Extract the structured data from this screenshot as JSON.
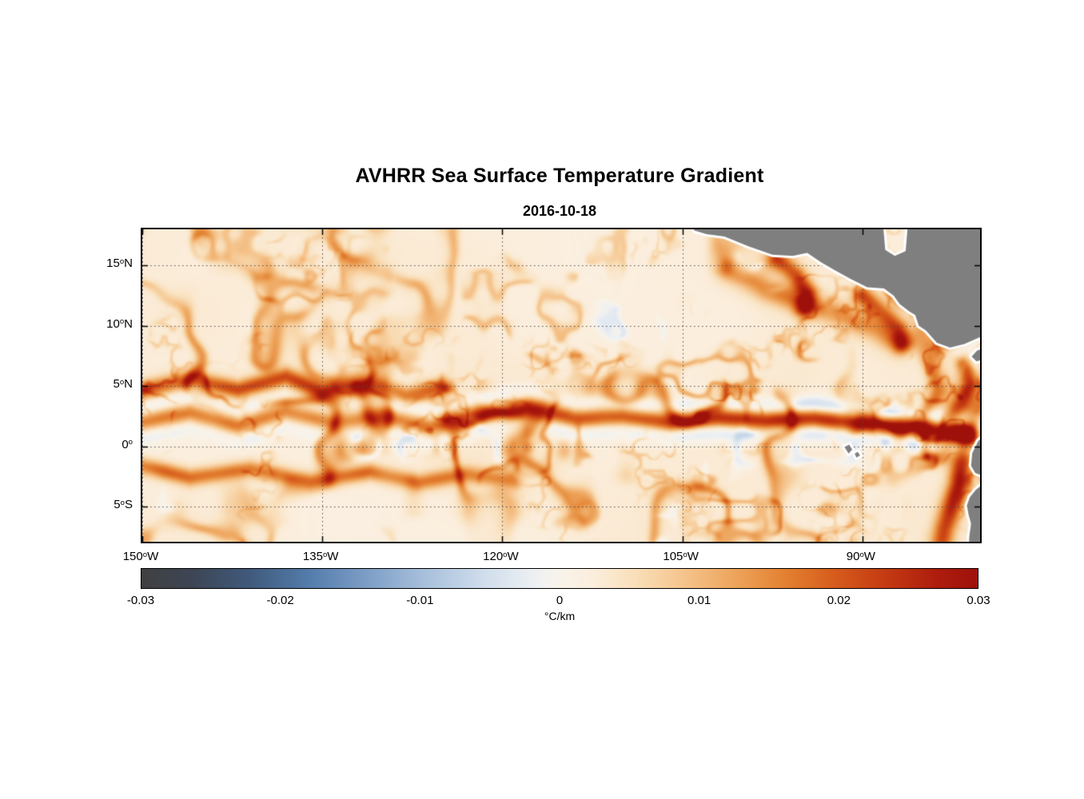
{
  "chart_data": {
    "type": "heatmap",
    "title": "AVHRR Sea Surface Temperature Gradient",
    "subtitle": "2016-10-18",
    "units": "°C/km",
    "lon_range": [
      -150,
      -80.2
    ],
    "lat_range": [
      -7.9,
      18.0
    ],
    "x_ticks": [
      {
        "lon": -150,
        "text": "150",
        "sup": "o",
        "suffix": "W"
      },
      {
        "lon": -135,
        "text": "135",
        "sup": "o",
        "suffix": "W"
      },
      {
        "lon": -120,
        "text": "120",
        "sup": "o",
        "suffix": "W"
      },
      {
        "lon": -105,
        "text": "105",
        "sup": "o",
        "suffix": "W"
      },
      {
        "lon": -90,
        "text": "90",
        "sup": "o",
        "suffix": "W"
      }
    ],
    "y_ticks": [
      {
        "lat": 15,
        "text": "15",
        "sup": "o",
        "suffix": "N"
      },
      {
        "lat": 10,
        "text": "10",
        "sup": "o",
        "suffix": "N"
      },
      {
        "lat": 5,
        "text": "5",
        "sup": "o",
        "suffix": "N"
      },
      {
        "lat": 0,
        "text": "0",
        "sup": "o",
        "suffix": ""
      },
      {
        "lat": -5,
        "text": "5",
        "sup": "o",
        "suffix": "S"
      }
    ],
    "grid": {
      "lons": [
        -150,
        -135,
        -120,
        -105,
        -90
      ],
      "lats": [
        -5,
        0,
        5,
        10,
        15
      ],
      "style": "dotted",
      "color": "#4a4a4a"
    },
    "colorbar": {
      "min": -0.03,
      "max": 0.03,
      "tick_labels": [
        "-0.03",
        "-0.02",
        "-0.01",
        "0",
        "0.01",
        "0.02",
        "0.03"
      ],
      "label": "°C/km",
      "stops": [
        [
          0.0,
          "#404041"
        ],
        [
          0.06,
          "#3d4554"
        ],
        [
          0.13,
          "#405a7c"
        ],
        [
          0.2,
          "#547cab"
        ],
        [
          0.27,
          "#7d9ec6"
        ],
        [
          0.34,
          "#a8c0dc"
        ],
        [
          0.41,
          "#d0ddec"
        ],
        [
          0.47,
          "#edf0f3"
        ],
        [
          0.5,
          "#f8f3ea"
        ],
        [
          0.54,
          "#fbeedd"
        ],
        [
          0.59,
          "#f9dfba"
        ],
        [
          0.65,
          "#f5c38b"
        ],
        [
          0.71,
          "#eda45b"
        ],
        [
          0.77,
          "#e38031"
        ],
        [
          0.83,
          "#d65b1c"
        ],
        [
          0.89,
          "#c43a12"
        ],
        [
          0.95,
          "#ae1d0e"
        ],
        [
          1.0,
          "#9e110b"
        ]
      ]
    },
    "map": {
      "land_color": "#7f7f7f",
      "coast_color": "#ffffff",
      "land_polygons": {
        "central_america": [
          [
            -104.5,
            18.6
          ],
          [
            -104.0,
            17.9
          ],
          [
            -103.0,
            17.6
          ],
          [
            -101.5,
            17.4
          ],
          [
            -99.5,
            16.6
          ],
          [
            -97.5,
            15.9
          ],
          [
            -95.8,
            15.8
          ],
          [
            -94.6,
            16.05
          ],
          [
            -93.5,
            15.3
          ],
          [
            -92.3,
            14.6
          ],
          [
            -91.0,
            13.9
          ],
          [
            -89.6,
            13.2
          ],
          [
            -88.2,
            13.1
          ],
          [
            -87.4,
            12.5
          ],
          [
            -86.9,
            11.8
          ],
          [
            -86.1,
            11.2
          ],
          [
            -85.6,
            10.9
          ],
          [
            -85.3,
            10.0
          ],
          [
            -84.7,
            9.6
          ],
          [
            -83.8,
            8.6
          ],
          [
            -82.7,
            8.2
          ],
          [
            -81.5,
            8.5
          ],
          [
            -80.6,
            8.9
          ],
          [
            -79.6,
            9.3
          ],
          [
            -79.6,
            18.6
          ],
          [
            -86.2,
            18.6
          ],
          [
            -86.4,
            16.2
          ],
          [
            -87.3,
            15.8
          ],
          [
            -88.1,
            16.3
          ],
          [
            -88.3,
            18.6
          ]
        ],
        "azuero_peninsula": [
          [
            -79.8,
            8.15
          ],
          [
            -80.45,
            7.95
          ],
          [
            -80.9,
            7.45
          ],
          [
            -80.5,
            7.05
          ],
          [
            -79.8,
            7.25
          ]
        ],
        "ecuador_coast": [
          [
            -79.8,
            0.95
          ],
          [
            -80.35,
            0.45
          ],
          [
            -80.85,
            -0.55
          ],
          [
            -80.95,
            -1.6
          ],
          [
            -80.6,
            -2.2
          ],
          [
            -79.8,
            -2.5
          ]
        ],
        "peru_coast": [
          [
            -79.8,
            -3.0
          ],
          [
            -80.55,
            -3.6
          ],
          [
            -81.05,
            -4.2
          ],
          [
            -81.3,
            -4.9
          ],
          [
            -81.15,
            -5.7
          ],
          [
            -80.95,
            -6.4
          ],
          [
            -81.1,
            -7.5
          ],
          [
            -81.15,
            -8.5
          ],
          [
            -79.8,
            -8.5
          ]
        ],
        "galapagos_west": [
          [
            -91.5,
            -0.05
          ],
          [
            -91.1,
            0.15
          ],
          [
            -90.85,
            -0.25
          ],
          [
            -91.15,
            -0.6
          ]
        ],
        "galapagos_east": [
          [
            -90.65,
            -0.6
          ],
          [
            -90.4,
            -0.45
          ],
          [
            -90.2,
            -0.75
          ],
          [
            -90.5,
            -0.92
          ]
        ]
      }
    },
    "fronts": [
      {
        "name": "north-equatorial-countercurrent-front",
        "path": [
          [
            -150,
            4.6
          ],
          [
            -146,
            5.6
          ],
          [
            -142,
            4.7
          ],
          [
            -138,
            5.8
          ],
          [
            -135,
            4.5
          ],
          [
            -131,
            5.3
          ],
          [
            -128,
            4.2
          ],
          [
            -125,
            4.9
          ]
        ],
        "amp": 0.021,
        "width": 0.75
      },
      {
        "name": "equatorial-front",
        "path": [
          [
            -150,
            2.0
          ],
          [
            -146,
            2.8
          ],
          [
            -142,
            1.7
          ],
          [
            -138,
            2.9
          ],
          [
            -134,
            1.9
          ],
          [
            -130,
            2.5
          ],
          [
            -126,
            1.6
          ],
          [
            -122,
            2.7
          ],
          [
            -118,
            3.3
          ],
          [
            -114,
            2.3
          ],
          [
            -110,
            2.5
          ],
          [
            -106,
            2.0
          ],
          [
            -102,
            2.4
          ],
          [
            -98,
            2.1
          ],
          [
            -94,
            2.3
          ],
          [
            -90,
            1.9
          ],
          [
            -86,
            1.5
          ],
          [
            -81,
            1.0
          ]
        ],
        "amp": 0.016,
        "amp_east": 0.03,
        "width": 0.8,
        "fringe": 0.38
      },
      {
        "name": "south-equatorial-filaments",
        "path": [
          [
            -150,
            -1.6
          ],
          [
            -146,
            -2.6
          ],
          [
            -141,
            -1.9
          ],
          [
            -136,
            -2.9
          ],
          [
            -131,
            -2.1
          ],
          [
            -127,
            -3.0
          ],
          [
            -123,
            -2.3
          ],
          [
            -119,
            -2.8
          ]
        ],
        "amp": 0.017,
        "width": 0.7
      },
      {
        "name": "tehuantepec-front",
        "path": [
          [
            -97,
            15.6
          ],
          [
            -95.5,
            14.2
          ],
          [
            -94.6,
            12.8
          ],
          [
            -94.8,
            11.4
          ]
        ],
        "amp": 0.024,
        "width": 0.8
      },
      {
        "name": "papagayo-front",
        "path": [
          [
            -90,
            12.5
          ],
          [
            -88.2,
            11.0
          ],
          [
            -87.0,
            9.8
          ],
          [
            -86.6,
            8.6
          ]
        ],
        "amp": 0.024,
        "width": 0.8
      },
      {
        "name": "central-america-coastal-band",
        "path": [
          [
            -101,
            14.5
          ],
          [
            -98,
            13.0
          ],
          [
            -95,
            12.0
          ],
          [
            -92,
            11.0
          ],
          [
            -89,
            9.8
          ],
          [
            -87,
            8.6
          ]
        ],
        "amp": 0.015,
        "width": 1.0
      },
      {
        "name": "panama-bight-front",
        "path": [
          [
            -81.5,
            6.8
          ],
          [
            -81.0,
            5.2
          ],
          [
            -81.8,
            3.6
          ],
          [
            -82.6,
            2.6
          ]
        ],
        "amp": 0.021,
        "width": 0.7
      },
      {
        "name": "peru-coastal-front",
        "path": [
          [
            -81.5,
            0.3
          ],
          [
            -81.8,
            -1.5
          ],
          [
            -82.0,
            -3.2
          ],
          [
            -82.6,
            -5.0
          ],
          [
            -83.2,
            -6.8
          ],
          [
            -83.4,
            -7.9
          ]
        ],
        "amp": 0.026,
        "width": 0.9
      }
    ],
    "texture": {
      "base_value": 0.0015,
      "base_variation": 0.0025,
      "layers": [
        {
          "size": 5.5,
          "amp": 0.014,
          "ridge": 0.055,
          "mask_size": 9,
          "mask_th": 0.45,
          "seed": 3
        },
        {
          "size": 2.8,
          "amp": 0.01,
          "ridge": 0.055,
          "mask_size": 6,
          "mask_th": 0.5,
          "seed": 17
        },
        {
          "size": 1.5,
          "amp": 0.006,
          "ridge": 0.05,
          "mask_size": 4,
          "mask_th": 0.55,
          "seed": 29
        },
        {
          "size": 3.5,
          "amp": -0.008,
          "ridge": 0.05,
          "mask_size": 5,
          "mask_th": 0.62,
          "seed": 41
        }
      ]
    }
  }
}
